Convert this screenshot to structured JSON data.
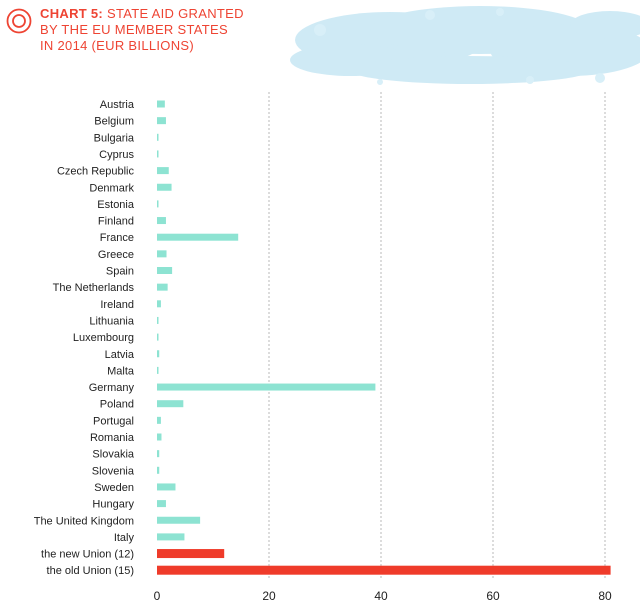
{
  "header": {
    "chart_no": "CHART 5:",
    "title_line1": "STATE AID GRANTED",
    "title_line2": "BY THE EU MEMBER STATES",
    "title_line3": "IN 2014 (EUR BILLIONS)",
    "icon": "target-circle-icon"
  },
  "colors": {
    "title": "#ee4433",
    "country_bar": "#8de3d2",
    "union_bar": "#ef3b2a",
    "grid": "#b8b8b8",
    "text": "#222222",
    "splash": "#bfe4f2"
  },
  "chart_data": {
    "type": "bar",
    "orientation": "horizontal",
    "title": "CHART 5: STATE AID GRANTED BY THE EU MEMBER STATES IN 2014 (EUR BILLIONS)",
    "xlabel": "",
    "ylabel": "",
    "xlim": [
      0,
      82
    ],
    "xticks": [
      0,
      20,
      40,
      60,
      80
    ],
    "grid": "vertical dashed at 20, 40, 60, 80",
    "categories": [
      "Austria",
      "Belgium",
      "Bulgaria",
      "Cyprus",
      "Czech Republic",
      "Denmark",
      "Estonia",
      "Finland",
      "France",
      "Greece",
      "Spain",
      "The Netherlands",
      "Ireland",
      "Lithuania",
      "Luxembourg",
      "Latvia",
      "Malta",
      "Germany",
      "Poland",
      "Portugal",
      "Romania",
      "Slovakia",
      "Slovenia",
      "Sweden",
      "Hungary",
      "The United Kingdom",
      "Italy",
      "the new Union (12)",
      "the old Union (15)"
    ],
    "values": [
      1.4,
      1.6,
      0.2,
      0.2,
      2.1,
      2.6,
      0.2,
      1.6,
      14.5,
      1.7,
      2.7,
      1.9,
      0.7,
      0.2,
      0.2,
      0.4,
      0.2,
      39.0,
      4.7,
      0.7,
      0.8,
      0.4,
      0.4,
      3.3,
      1.6,
      7.7,
      4.9,
      12.0,
      81.0
    ],
    "highlight": [
      "the new Union (12)",
      "the old Union (15)"
    ]
  }
}
